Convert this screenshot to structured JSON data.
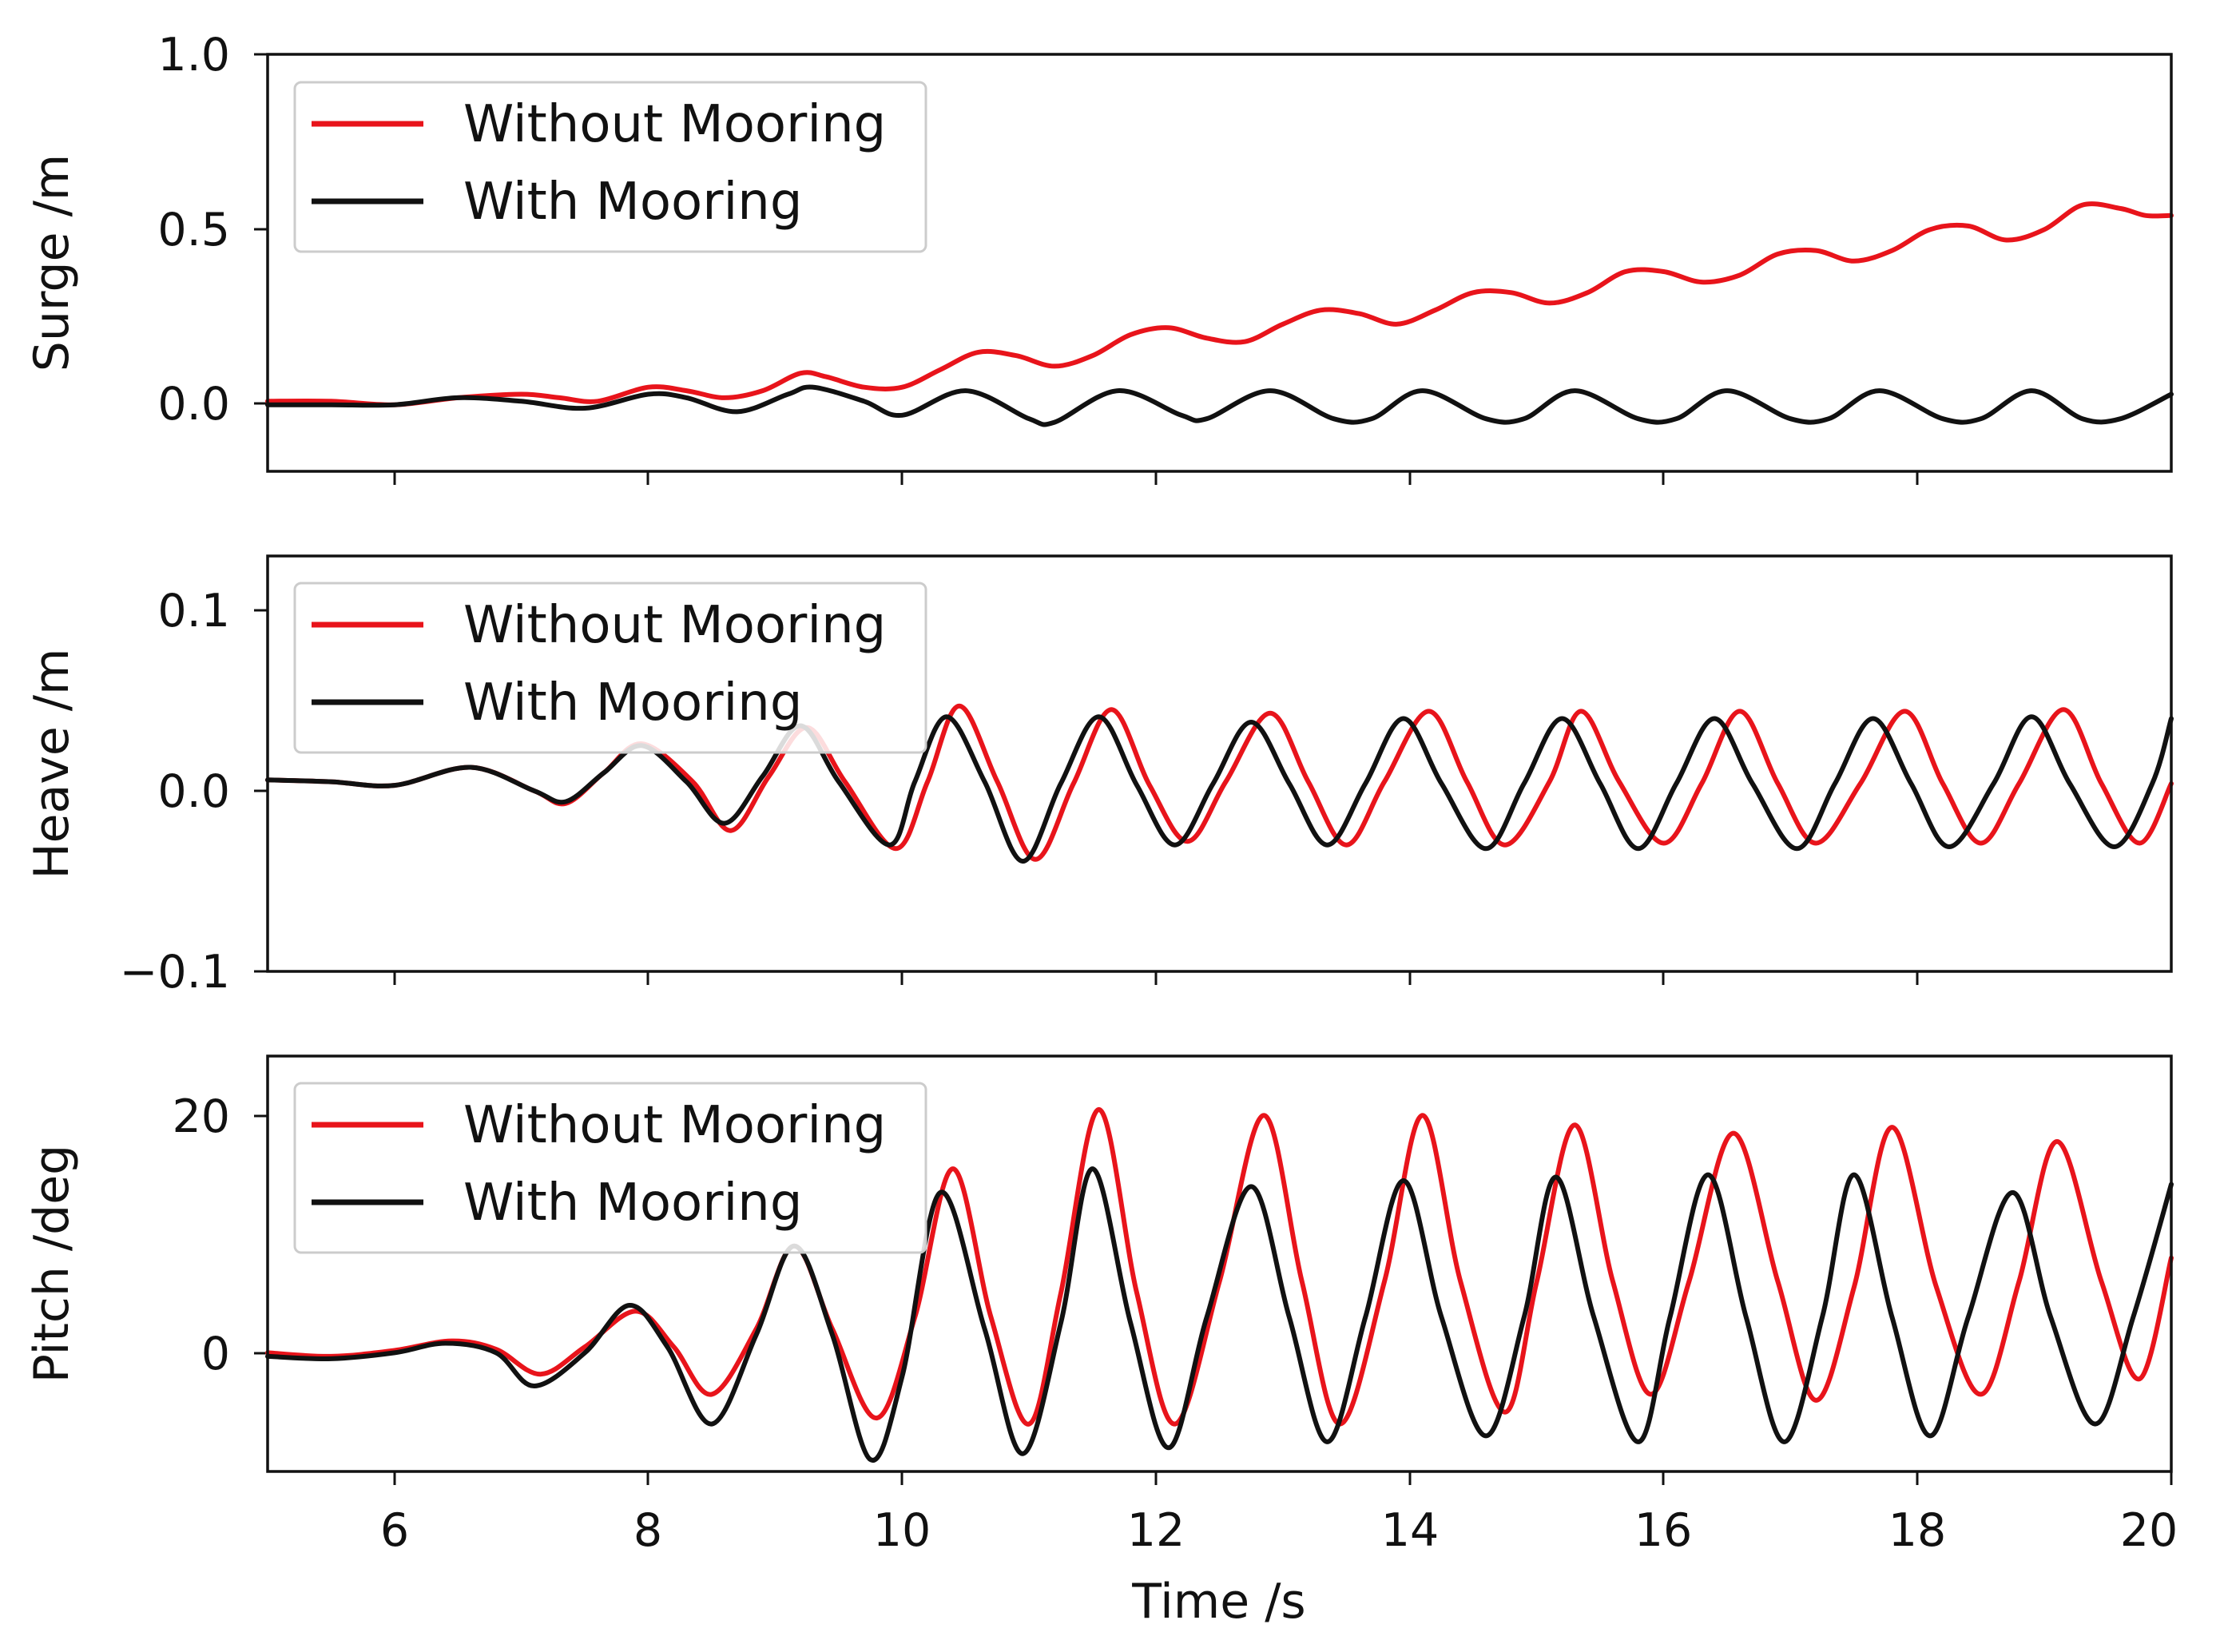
{
  "chart_data": [
    {
      "type": "line",
      "title": "",
      "ylabel": "Surge /m",
      "xlabel": "",
      "xlim": [
        5,
        20
      ],
      "ylim": [
        -0.19,
        1.0
      ],
      "yticks": [
        0.0,
        0.5,
        1.0
      ],
      "ytick_labels": [
        "0.0",
        "0.5",
        "1.0"
      ],
      "legend_position": "upper-left",
      "series": [
        {
          "name": "Without Mooring",
          "color": "#e8141b",
          "x": [
            5.0,
            5.5,
            6.0,
            6.5,
            7.0,
            7.3,
            7.6,
            8.0,
            8.3,
            8.6,
            8.9,
            9.2,
            9.4,
            9.7,
            10.0,
            10.3,
            10.6,
            10.9,
            11.2,
            11.5,
            11.8,
            12.1,
            12.4,
            12.7,
            13.0,
            13.3,
            13.6,
            13.9,
            14.2,
            14.5,
            14.8,
            15.1,
            15.4,
            15.7,
            16.0,
            16.3,
            16.6,
            16.9,
            17.2,
            17.5,
            17.8,
            18.1,
            18.4,
            18.7,
            19.0,
            19.3,
            19.6,
            19.8,
            20.0
          ],
          "y": [
            0.01,
            0.01,
            0.0,
            0.02,
            0.03,
            0.02,
            0.01,
            0.05,
            0.04,
            0.02,
            0.04,
            0.09,
            0.08,
            0.05,
            0.05,
            0.1,
            0.15,
            0.14,
            0.11,
            0.14,
            0.2,
            0.22,
            0.19,
            0.18,
            0.23,
            0.27,
            0.26,
            0.23,
            0.27,
            0.32,
            0.32,
            0.29,
            0.32,
            0.38,
            0.38,
            0.35,
            0.37,
            0.43,
            0.44,
            0.41,
            0.44,
            0.5,
            0.51,
            0.47,
            0.5,
            0.57,
            0.56,
            0.54,
            0.54
          ]
        },
        {
          "name": "With Mooring",
          "color": "#111111",
          "x": [
            5.0,
            5.5,
            6.0,
            6.5,
            7.0,
            7.5,
            8.0,
            8.3,
            8.7,
            9.1,
            9.3,
            9.7,
            10.0,
            10.5,
            11.0,
            11.2,
            11.7,
            12.2,
            12.4,
            12.9,
            13.4,
            13.7,
            14.1,
            14.6,
            14.9,
            15.3,
            15.8,
            16.1,
            16.5,
            17.0,
            17.3,
            17.7,
            18.2,
            18.5,
            18.9,
            19.3,
            19.6,
            20.0
          ],
          "y": [
            0.0,
            0.0,
            0.0,
            0.02,
            0.01,
            -0.01,
            0.03,
            0.02,
            -0.02,
            0.03,
            0.05,
            0.01,
            -0.03,
            0.04,
            -0.04,
            -0.05,
            0.04,
            -0.03,
            -0.04,
            0.04,
            -0.04,
            -0.04,
            0.04,
            -0.04,
            -0.04,
            0.04,
            -0.04,
            -0.04,
            0.04,
            -0.04,
            -0.04,
            0.04,
            -0.04,
            -0.04,
            0.04,
            -0.04,
            -0.04,
            0.03
          ]
        }
      ]
    },
    {
      "type": "line",
      "title": "",
      "ylabel": "Heave /m",
      "xlabel": "",
      "xlim": [
        5,
        20
      ],
      "ylim": [
        -0.1,
        0.13
      ],
      "yticks": [
        -0.1,
        0.0,
        0.1
      ],
      "ytick_labels": [
        "−0.1",
        "0.0",
        "0.1"
      ],
      "legend_position": "upper-left",
      "series": [
        {
          "name": "Without Mooring",
          "color": "#e8141b",
          "x": [
            5.0,
            5.5,
            6.0,
            6.6,
            7.1,
            7.35,
            7.65,
            7.95,
            8.35,
            8.65,
            8.95,
            9.25,
            9.55,
            9.95,
            10.2,
            10.45,
            10.75,
            11.05,
            11.35,
            11.65,
            11.95,
            12.25,
            12.55,
            12.9,
            13.2,
            13.5,
            13.8,
            14.15,
            14.45,
            14.75,
            15.1,
            15.35,
            15.65,
            16.0,
            16.3,
            16.6,
            16.9,
            17.2,
            17.55,
            17.9,
            18.2,
            18.5,
            18.8,
            19.15,
            19.45,
            19.75,
            20.0
          ],
          "y": [
            0.006,
            0.005,
            0.003,
            0.013,
            0.0,
            -0.007,
            0.01,
            0.026,
            0.005,
            -0.022,
            0.008,
            0.035,
            0.005,
            -0.032,
            0.005,
            0.047,
            0.005,
            -0.038,
            0.004,
            0.045,
            0.003,
            -0.028,
            0.005,
            0.043,
            0.005,
            -0.03,
            0.005,
            0.044,
            0.005,
            -0.03,
            0.005,
            0.044,
            0.005,
            -0.029,
            0.004,
            0.044,
            0.004,
            -0.029,
            0.004,
            0.044,
            0.004,
            -0.029,
            0.004,
            0.045,
            0.004,
            -0.029,
            0.004
          ]
        },
        {
          "name": "With Mooring",
          "color": "#111111",
          "x": [
            5.0,
            5.5,
            6.0,
            6.6,
            7.1,
            7.35,
            7.65,
            7.95,
            8.3,
            8.6,
            8.9,
            9.2,
            9.5,
            9.9,
            10.1,
            10.35,
            10.65,
            10.95,
            11.25,
            11.55,
            11.85,
            12.15,
            12.45,
            12.75,
            13.05,
            13.35,
            13.65,
            13.95,
            14.25,
            14.6,
            14.9,
            15.2,
            15.5,
            15.8,
            16.1,
            16.4,
            16.7,
            17.05,
            17.35,
            17.65,
            17.95,
            18.25,
            18.6,
            18.9,
            19.2,
            19.55,
            19.85,
            20.0
          ],
          "y": [
            0.006,
            0.005,
            0.003,
            0.013,
            0.0,
            -0.006,
            0.01,
            0.025,
            0.005,
            -0.018,
            0.008,
            0.036,
            0.005,
            -0.03,
            0.005,
            0.041,
            0.005,
            -0.039,
            0.004,
            0.041,
            0.003,
            -0.03,
            0.004,
            0.038,
            0.004,
            -0.03,
            0.004,
            0.04,
            0.004,
            -0.032,
            0.004,
            0.04,
            0.004,
            -0.032,
            0.004,
            0.04,
            0.004,
            -0.032,
            0.004,
            0.04,
            0.004,
            -0.031,
            0.004,
            0.041,
            0.004,
            -0.031,
            0.004,
            0.04
          ]
        }
      ]
    },
    {
      "type": "line",
      "title": "",
      "ylabel": "Pitch /deg",
      "xlabel": "Time /s",
      "xlim": [
        5,
        20
      ],
      "ylim": [
        -10,
        25
      ],
      "yticks": [
        0,
        20
      ],
      "ytick_labels": [
        "0",
        "20"
      ],
      "xticks": [
        6,
        8,
        10,
        12,
        14,
        16,
        18,
        20
      ],
      "xtick_labels": [
        "6",
        "8",
        "10",
        "12",
        "14",
        "16",
        "18",
        "20"
      ],
      "legend_position": "upper-left",
      "series": [
        {
          "name": "Without Mooring",
          "color": "#e8141b",
          "x": [
            5.0,
            5.5,
            6.0,
            6.45,
            6.8,
            7.15,
            7.5,
            7.9,
            8.2,
            8.5,
            8.85,
            9.15,
            9.45,
            9.8,
            10.1,
            10.4,
            10.7,
            11.0,
            11.25,
            11.55,
            11.85,
            12.15,
            12.5,
            12.85,
            13.15,
            13.45,
            13.8,
            14.1,
            14.4,
            14.75,
            15.0,
            15.3,
            15.6,
            15.9,
            16.2,
            16.55,
            16.9,
            17.2,
            17.5,
            17.8,
            18.15,
            18.5,
            18.8,
            19.1,
            19.45,
            19.75,
            20.0
          ],
          "y": [
            0.0,
            -0.3,
            0.2,
            1.0,
            0.3,
            -1.8,
            0.5,
            3.5,
            0.5,
            -3.5,
            2.0,
            9.0,
            2.0,
            -5.5,
            3.0,
            15.5,
            3.0,
            -6.0,
            5.0,
            20.5,
            5.0,
            -6.0,
            6.0,
            20.0,
            6.0,
            -6.0,
            6.0,
            20.0,
            6.0,
            -5.0,
            6.0,
            19.2,
            6.0,
            -3.5,
            6.0,
            18.5,
            6.0,
            -4.0,
            5.5,
            19.0,
            5.5,
            -3.5,
            6.0,
            17.8,
            6.0,
            -2.2,
            8.0
          ]
        },
        {
          "name": "With Mooring",
          "color": "#111111",
          "x": [
            5.0,
            5.5,
            6.0,
            6.4,
            6.8,
            7.1,
            7.5,
            7.85,
            8.15,
            8.5,
            8.85,
            9.15,
            9.45,
            9.75,
            10.0,
            10.3,
            10.65,
            10.95,
            11.25,
            11.5,
            11.8,
            12.1,
            12.4,
            12.75,
            13.05,
            13.35,
            13.65,
            13.95,
            14.25,
            14.6,
            14.9,
            15.15,
            15.45,
            15.8,
            16.05,
            16.35,
            16.65,
            16.95,
            17.25,
            17.5,
            17.8,
            18.1,
            18.4,
            18.75,
            19.05,
            19.4,
            19.7,
            20.0
          ],
          "y": [
            -0.3,
            -0.5,
            0.0,
            0.8,
            0.0,
            -2.8,
            0.0,
            4.0,
            0.5,
            -6.0,
            1.5,
            9.0,
            1.5,
            -9.0,
            -2.0,
            13.5,
            2.0,
            -8.5,
            2.5,
            15.5,
            2.5,
            -8.0,
            3.0,
            14.0,
            3.0,
            -7.5,
            3.0,
            14.5,
            3.0,
            -7.0,
            3.0,
            14.8,
            3.0,
            -7.5,
            3.0,
            15.0,
            3.0,
            -7.5,
            3.0,
            15.0,
            3.0,
            -7.0,
            3.0,
            13.5,
            3.0,
            -6.0,
            3.0,
            14.2
          ]
        }
      ]
    }
  ]
}
